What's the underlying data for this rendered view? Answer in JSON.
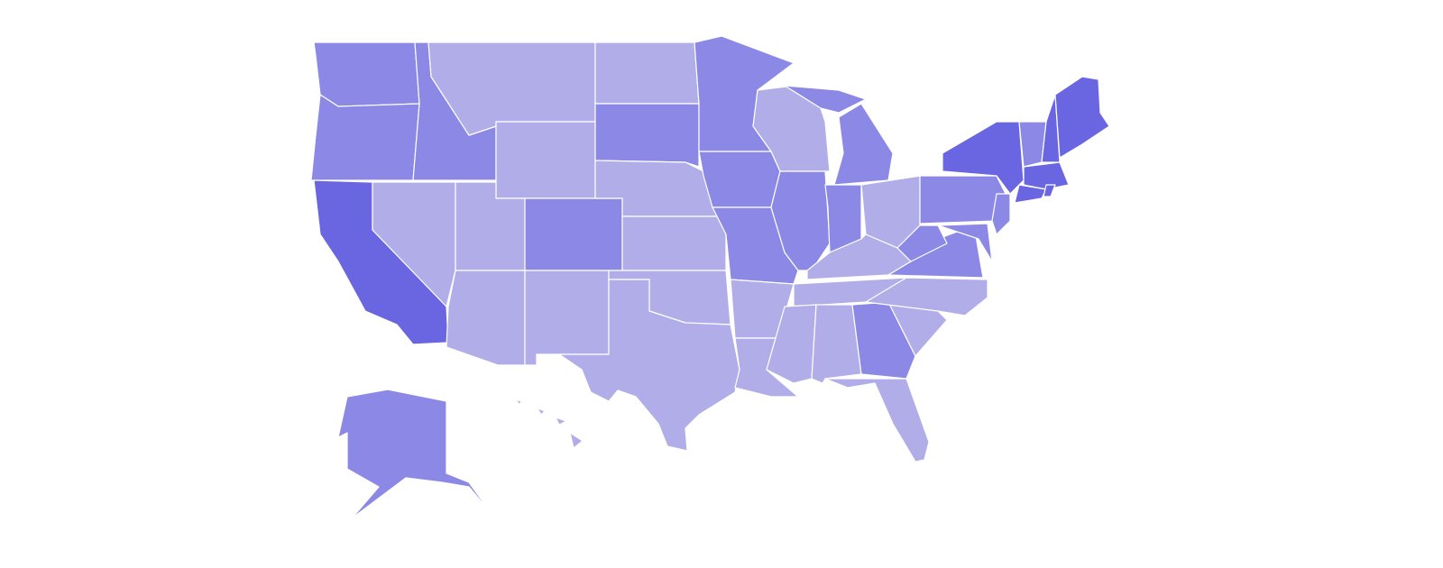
{
  "map": {
    "fill_colors": [
      "#b0ade9",
      "#8b88e6",
      "#6a65e1"
    ],
    "border_color": "#ffffff"
  }
}
